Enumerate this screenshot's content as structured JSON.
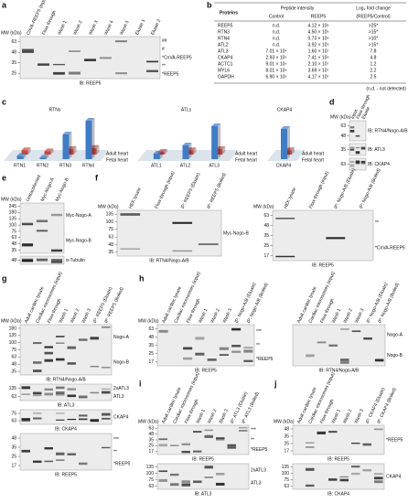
{
  "a": {
    "label": "a",
    "blots": [
      {
        "mw": "MW (kDa)",
        "lanes": [
          "CnVA-REEP5 (input)",
          "Flow through",
          "Wash 1",
          "Wash 2",
          "Wash 3",
          "Wash 4",
          "Wash 5",
          "Eluate 1",
          "Eluate 2"
        ],
        "strips": [
          {
            "markers": [
              "63",
              "48",
              "35",
              "25"
            ],
            "annotations": [
              "##",
              "#",
              "*CnVA-REEP5",
              "**",
              "*REEP5"
            ],
            "ib": "IB: REEP5"
          }
        ]
      }
    ]
  },
  "b": {
    "label": "b",
    "headers": [
      "Proteins",
      "Peptide intensity",
      "Log₂ fold change"
    ],
    "subheaders": [
      "Control",
      "REEP5",
      "(REEP5/Control)"
    ],
    "rows": [
      [
        "REEP5",
        "n.d.",
        "4.12 × 10⁸",
        ">25*"
      ],
      [
        "RTN3",
        "n.d.",
        "4.50 × 10⁶",
        ">15*"
      ],
      [
        "RTN4",
        "n.d.",
        "9.73 × 10⁴",
        ">10*"
      ],
      [
        "ATL2",
        "n.d.",
        "3.92 × 10⁵",
        ">15*"
      ],
      [
        "ATL3",
        "7.01 × 10⁴",
        "1.60 × 10⁷",
        "7.8"
      ],
      [
        "CKAP4",
        "2.93 × 10⁵",
        "7.41 × 10⁶",
        "4.8"
      ],
      [
        "ACTC1",
        "9.01 × 10⁶",
        "2.10 × 10⁷",
        "1.2"
      ],
      [
        "MYL6",
        "8.01 × 10⁶",
        "3.69 × 10⁷",
        "2.2"
      ],
      [
        "GAPDH",
        "6.90 × 10⁶",
        "4.17 × 10⁷",
        "2.5"
      ]
    ],
    "note": "(n.d. - not detected)"
  },
  "c": {
    "label": "c",
    "charts": [
      {
        "title": "RTNs",
        "categories": [
          "RTN1",
          "RTN2",
          "RTN3",
          "RTN4"
        ],
        "series": [
          {
            "name": "Adult heart",
            "color": "#3d7cc9",
            "values": [
              6,
              3,
              45,
              70
            ]
          },
          {
            "name": "Fetal heart",
            "color": "#c9463d",
            "values": [
              8,
              6,
              10,
              12
            ]
          }
        ]
      },
      {
        "title": "ATLs",
        "categories": [
          "ATL1",
          "ATL2",
          "ATL3"
        ],
        "series": [
          {
            "name": "Adult heart",
            "color": "#3d7cc9",
            "values": [
              10,
              25,
              60
            ]
          },
          {
            "name": "Fetal heart",
            "color": "#c9463d",
            "values": [
              5,
              8,
              10
            ]
          }
        ]
      },
      {
        "title": "CKAP4",
        "categories": [
          "CKAP4"
        ],
        "series": [
          {
            "name": "Adult heart",
            "color": "#3d7cc9",
            "values": [
              55
            ]
          },
          {
            "name": "Fetal heart",
            "color": "#c9463d",
            "values": [
              8
            ]
          }
        ]
      }
    ]
  },
  "d": {
    "label": "d",
    "blots": [
      {
        "mw": "MW (kDa)",
        "lanes": [
          "Input",
          "Flow through",
          "Eluate"
        ],
        "strips": [
          {
            "markers": [
              "63",
              "48"
            ],
            "annotations": [],
            "ib": "IB: RTN4/Nogo-A/B"
          },
          {
            "markers": [
              "35"
            ],
            "annotations": [],
            "ib": "IB: ATL3"
          },
          {
            "markers": [
              "63"
            ],
            "annotations": [],
            "ib": "IB: CKAP4"
          }
        ]
      }
    ]
  },
  "e": {
    "label": "e",
    "blots": [
      {
        "mw": "MW (kDa)",
        "lanes": [
          "Untransfected",
          "Myc-Nogo-A",
          "Myc-Nogo-B"
        ],
        "strips": [
          {
            "markers": [
              "245",
              "180",
              "135",
              "100",
              "75",
              "63",
              "48",
              "35"
            ],
            "annotations": [
              "Myc-Nogo-A",
              "Myc-Nogo-B"
            ]
          },
          {
            "markers": [
              "48"
            ],
            "annotations": [
              "α-Tubulin"
            ]
          }
        ]
      }
    ]
  },
  "f": {
    "label": "f",
    "blots": [
      {
        "mw": "MW (kDa)",
        "lanes": [
          "HEK lysate",
          "Flow through (input)",
          "IP: REEP5 (Eluate)",
          "IP: REEP5 (Boiled)"
        ],
        "strips": [
          {
            "markers": [
              "135",
              "100",
              "75",
              "63",
              "48",
              "35"
            ],
            "annotations": [
              "Myc-Nogo-B"
            ],
            "ib": "IB: RTN4/Nogo-A/B"
          }
        ]
      },
      {
        "mw": "MW (kDa)",
        "lanes": [
          "HEK lysate",
          "Flow through (input)",
          "IP: Nogo-A/B (Eluate)",
          "IP: Nogo-A/B (Boiled)"
        ],
        "strips": [
          {
            "markers": [
              "63",
              "48",
              "35",
              "25",
              "17"
            ],
            "annotations": [
              "**",
              "*CnVA-REEP5"
            ],
            "ib": "IB: REEP5"
          }
        ]
      }
    ]
  },
  "g": {
    "label": "g",
    "blots": [
      {
        "mw": "MW (kDa)",
        "lanes": [
          "Adult cardiac lysate",
          "Cardiac microsomes (input)",
          "Flow through",
          "Wash 1",
          "Wash 2",
          "Wash 3",
          "IP: REEP5 (Eluate)",
          "IP: REEP5 (Boiled)"
        ],
        "strips": [
          {
            "markers": [
              "180",
              "135",
              "100",
              "75",
              "63",
              "48",
              "35"
            ],
            "annotations": [
              "Nogo-A",
              "Nogo-B"
            ],
            "ib": "IB: RTN4/Nogo-A/B"
          },
          {
            "markers": [
              "135",
              "63"
            ],
            "annotations": [
              "2xATL3",
              "ATL3"
            ],
            "ib": "IB: ATL3"
          },
          {
            "markers": [
              "75",
              "63"
            ],
            "annotations": [
              "CKAP4"
            ],
            "ib": "IB: CKAP4"
          },
          {
            "markers": [
              "48",
              "35",
              "25",
              "17"
            ],
            "annotations": [
              "***",
              "**",
              "*REEP5"
            ],
            "ib": "IB: REEP5"
          }
        ]
      }
    ]
  },
  "h": {
    "label": "h",
    "blots": [
      {
        "mw": "MW (kDa)",
        "lanes": [
          "Adult cardiac lysate",
          "Cardiac microsomes (input)",
          "Flow through",
          "Wash 1",
          "Wash 2",
          "Wash 3",
          "IP: Nogo-A/B (Eluate)",
          "IP: Nogo-A/B (Boiled)"
        ],
        "strips": [
          {
            "markers": [
              "63",
              "48",
              "35",
              "25",
              "17"
            ],
            "annotations": [
              "***",
              "**",
              "*REEP5"
            ],
            "ib": "IB: REEP5"
          }
        ]
      },
      {
        "lanes": [
          "Adult cardiac lysate",
          "Cardiac microsomes (input)",
          "Flow through",
          "Wash 1",
          "Wash 2",
          "Wash 3",
          "IP: Nogo-A/B (Eluate)",
          "IP: Nogo-A/B (Boiled)"
        ],
        "strips": [
          {
            "markers": [],
            "annotations": [
              "Nogo-A",
              "Nogo-B"
            ],
            "ib": "IB: RTN4/Nogo-A/B"
          }
        ]
      }
    ]
  },
  "i": {
    "label": "i",
    "blots": [
      {
        "mw": "MW (kDa)",
        "lanes": [
          "Adult cardiac lysate",
          "Cardiac microsomes (input)",
          "Flow through",
          "Wash 1",
          "Wash 2",
          "Wash 3",
          "IP: ATL3 (Eluate)",
          "IP: ATL3 (Boiled)"
        ],
        "strips": [
          {
            "markers": [
              "63",
              "48",
              "35",
              "25",
              "17"
            ],
            "annotations": [
              "***",
              "**",
              "*REEP5"
            ],
            "ib": "IB: REEP5"
          },
          {
            "markers": [
              "135",
              "100",
              "75",
              "63"
            ],
            "annotations": [
              "2xATL3",
              "ATL3"
            ],
            "ib": "IB: ATL3"
          }
        ]
      }
    ]
  },
  "j": {
    "label": "j",
    "blots": [
      {
        "mw": "MW (kDa)",
        "lanes": [
          "Adult cardiac lysate",
          "Cardiac microsomes (input)",
          "Flow through",
          "Wash 1",
          "Wash 2",
          "Wash 3",
          "IP: CKAP4 (Eluate)",
          "IP: CKAP4 (Boiled)"
        ],
        "strips": [
          {
            "markers": [
              "48",
              "35",
              "25",
              "17"
            ],
            "annotations": [
              "*REEP5"
            ],
            "ib": "IB: REEP5"
          },
          {
            "markers": [
              "135",
              "100",
              "75",
              "63"
            ],
            "annotations": [
              "CKAP4"
            ],
            "ib": "IB: CKAP4"
          }
        ]
      }
    ]
  }
}
